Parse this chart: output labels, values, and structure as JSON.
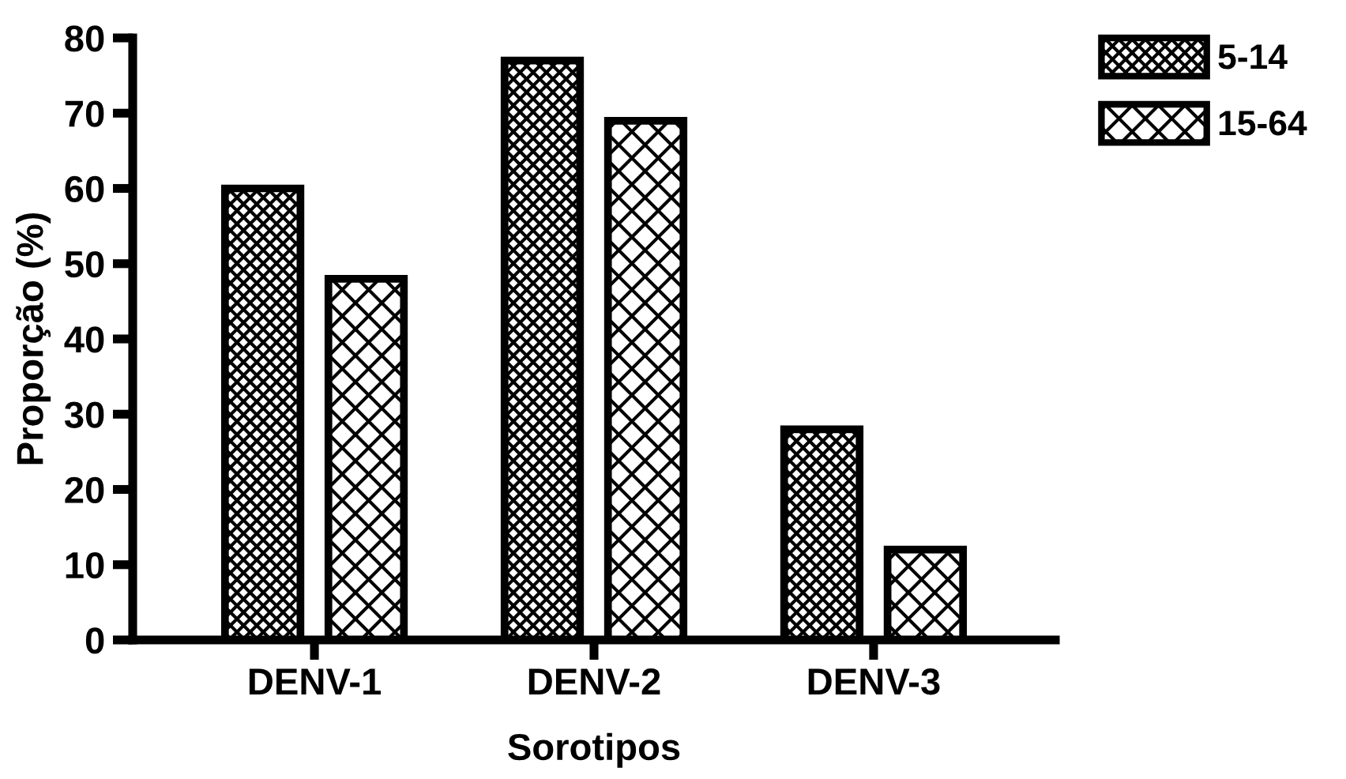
{
  "chart_data": {
    "type": "bar",
    "xlabel": "Sorotipos",
    "ylabel": "Proporção (%)",
    "categories": [
      "DENV-1",
      "DENV-2",
      "DENV-3"
    ],
    "series": [
      {
        "name": "5-14",
        "color": "#000000",
        "values": [
          60,
          77,
          28
        ]
      },
      {
        "name": "15-64",
        "color": "#000000",
        "values": [
          48,
          69,
          12
        ]
      }
    ],
    "ylim": [
      0,
      80
    ],
    "yticks": [
      0,
      10,
      20,
      30,
      40,
      50,
      60,
      70,
      80
    ],
    "grid": false,
    "legend": "top right"
  }
}
